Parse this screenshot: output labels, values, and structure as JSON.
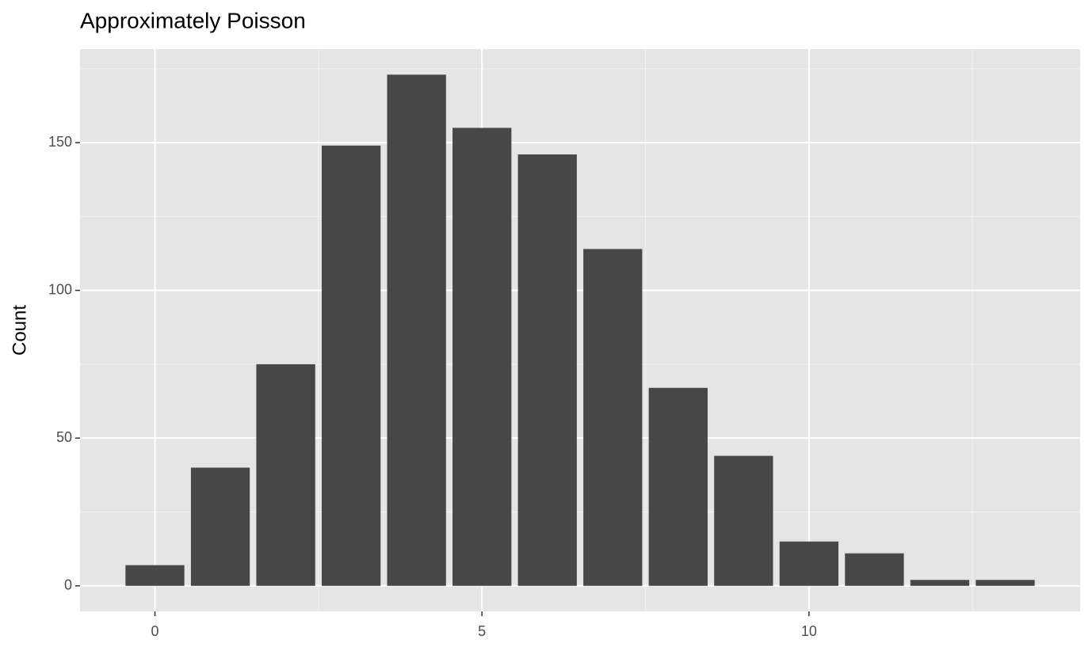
{
  "chart_data": {
    "type": "bar",
    "title": "Approximately Poisson",
    "y_label": "Count",
    "x": [
      0,
      1,
      2,
      3,
      4,
      5,
      6,
      7,
      8,
      9,
      10,
      11,
      12,
      13
    ],
    "values": [
      7,
      40,
      75,
      149,
      173,
      155,
      146,
      114,
      67,
      44,
      15,
      11,
      2,
      2
    ],
    "color": "#474747",
    "xlim": [
      -1.145,
      14.145
    ],
    "xticks": [
      0,
      5,
      10
    ],
    "ylim": [
      -8.65,
      181.65
    ],
    "yticks": [
      0,
      50,
      100,
      150
    ],
    "grid": true
  }
}
